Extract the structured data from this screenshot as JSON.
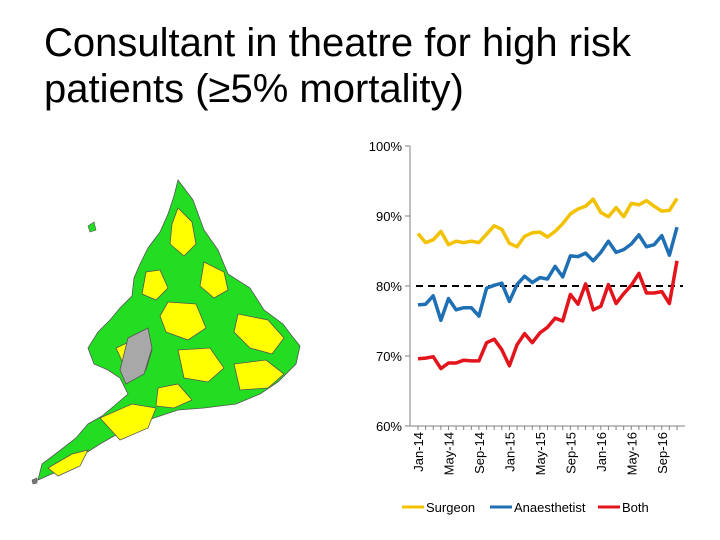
{
  "title": "Consultant in theatre for high risk patients (≥5% mortality)",
  "colors": {
    "surgeon": "#f2c100",
    "anaesthetist": "#1f6fb5",
    "both": "#e3141b",
    "map_green": "#22dd22",
    "map_yellow": "#ffff00",
    "map_grey": "#a8a8a8"
  },
  "chart_data": {
    "type": "line",
    "title": "",
    "xlabel": "",
    "ylabel": "",
    "ylim": [
      60,
      100
    ],
    "y_ticks": [
      "60%",
      "70%",
      "80%",
      "90%",
      "100%"
    ],
    "x_tick_labels": [
      "Jan-14",
      "May-14",
      "Sep-14",
      "Jan-15",
      "May-15",
      "Sep-15",
      "Jan-16",
      "May-16",
      "Sep-16"
    ],
    "reference_line": 80,
    "legend": [
      "Surgeon",
      "Anaesthetist",
      "Both"
    ],
    "legend_position": "bottom",
    "x": [
      "Jan-14",
      "Feb-14",
      "Mar-14",
      "Apr-14",
      "May-14",
      "Jun-14",
      "Jul-14",
      "Aug-14",
      "Sep-14",
      "Oct-14",
      "Nov-14",
      "Dec-14",
      "Jan-15",
      "Feb-15",
      "Mar-15",
      "Apr-15",
      "May-15",
      "Jun-15",
      "Jul-15",
      "Aug-15",
      "Sep-15",
      "Oct-15",
      "Nov-15",
      "Dec-15",
      "Jan-16",
      "Feb-16",
      "Mar-16",
      "Apr-16",
      "May-16",
      "Jun-16",
      "Jul-16",
      "Aug-16",
      "Sep-16",
      "Oct-16",
      "Nov-16"
    ],
    "series": [
      {
        "name": "Surgeon",
        "values": [
          87.5,
          86.2,
          86.6,
          87.8,
          85.9,
          86.4,
          86.2,
          86.4,
          86.2,
          87.4,
          88.6,
          88.1,
          86.1,
          85.6,
          87.1,
          87.6,
          87.7,
          87.0,
          87.8,
          88.9,
          90.3,
          91.0,
          91.4,
          92.4,
          90.5,
          89.9,
          91.2,
          89.9,
          91.8,
          91.6,
          92.2,
          91.4,
          90.7,
          90.8,
          92.5
        ]
      },
      {
        "name": "Anaesthetist",
        "values": [
          77.3,
          77.4,
          78.6,
          75.1,
          78.2,
          76.6,
          76.9,
          76.9,
          75.7,
          79.7,
          80.1,
          80.4,
          77.8,
          80.2,
          81.4,
          80.5,
          81.2,
          81.0,
          82.8,
          81.3,
          84.3,
          84.2,
          84.7,
          83.6,
          84.8,
          86.4,
          84.8,
          85.2,
          86.0,
          87.3,
          85.6,
          85.9,
          87.2,
          84.4,
          88.4
        ]
      },
      {
        "name": "Both",
        "values": [
          69.6,
          69.7,
          69.9,
          68.2,
          69.0,
          69.0,
          69.4,
          69.3,
          69.3,
          71.9,
          72.4,
          70.9,
          68.6,
          71.6,
          73.2,
          71.9,
          73.3,
          74.1,
          75.4,
          75.0,
          78.8,
          77.4,
          80.3,
          76.6,
          77.1,
          80.2,
          77.5,
          78.9,
          80.1,
          81.8,
          79.0,
          79.0,
          79.2,
          77.5,
          83.6
        ]
      }
    ]
  }
}
